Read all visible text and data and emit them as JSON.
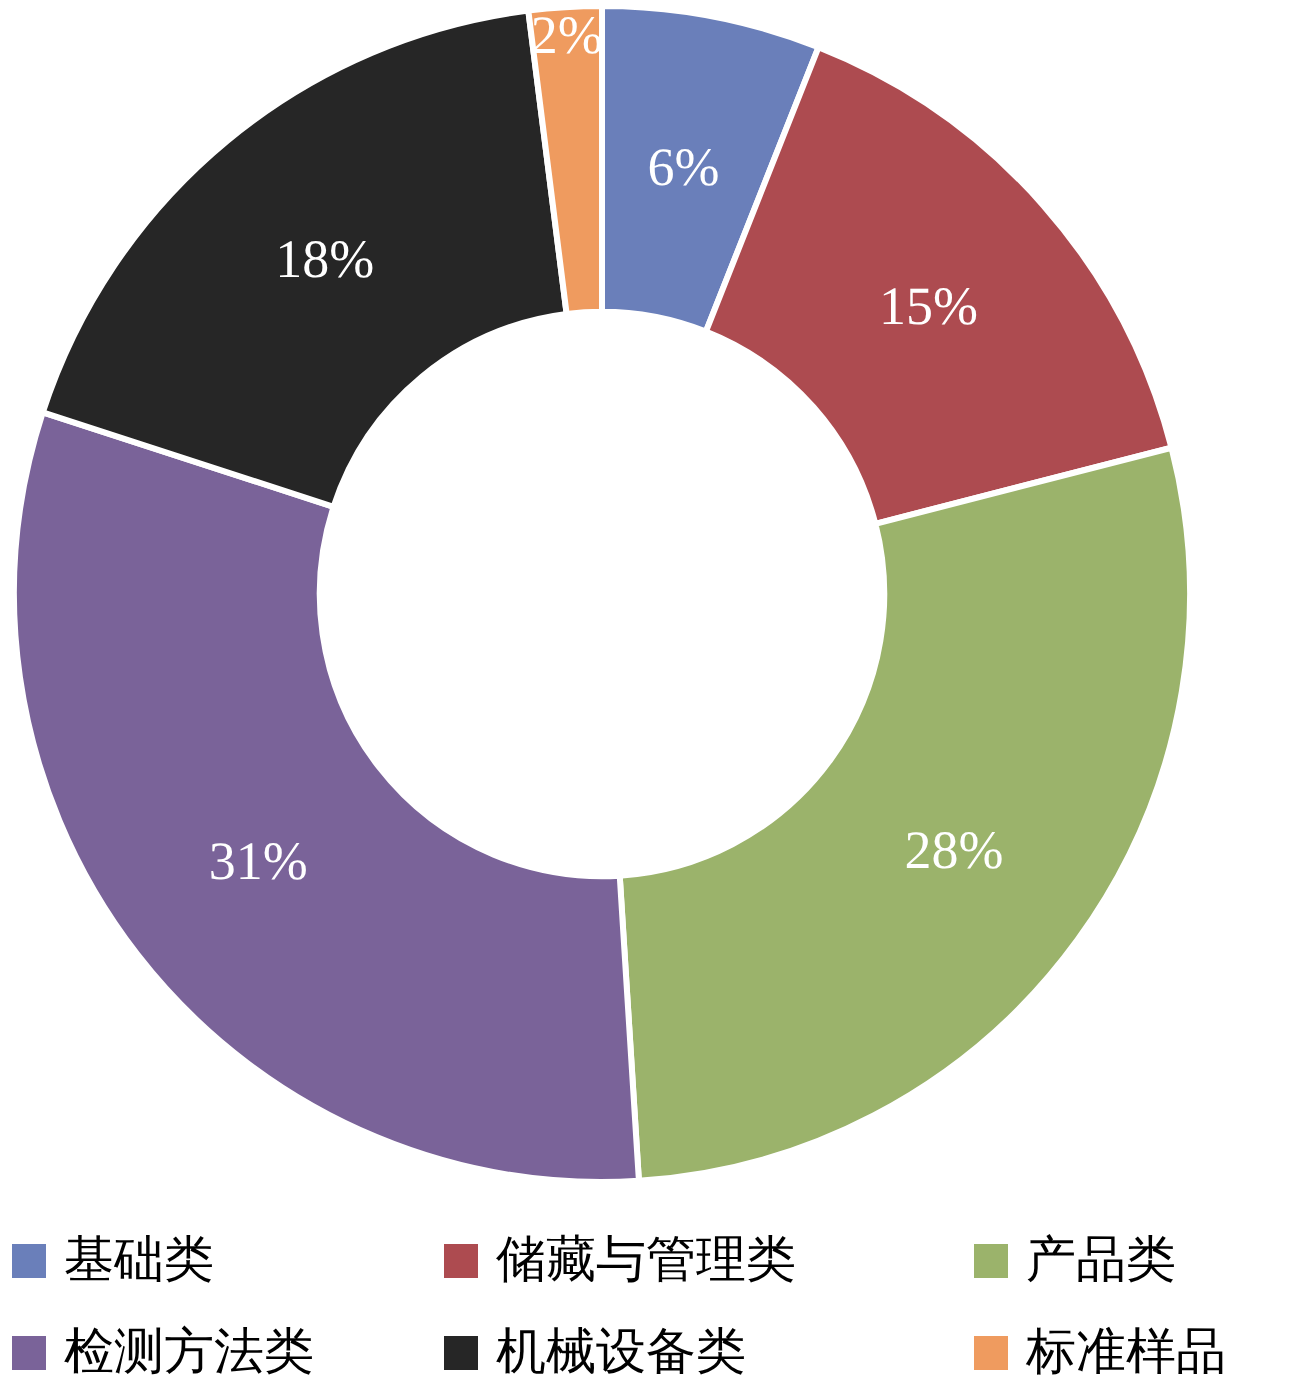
{
  "chart_data": {
    "type": "donut",
    "categories": [
      "基础类",
      "储藏与管理类",
      "产品类",
      "检测方法类",
      "机械设备类",
      "标准样品"
    ],
    "values": [
      6,
      15,
      28,
      31,
      18,
      2
    ],
    "colors": [
      "#6a7fba",
      "#ad4b50",
      "#9bb36b",
      "#7a6399",
      "#262626",
      "#ef9b5f"
    ],
    "value_labels": [
      "6%",
      "15%",
      "28%",
      "31%",
      "18%",
      "2%"
    ],
    "legend": "bottom"
  }
}
